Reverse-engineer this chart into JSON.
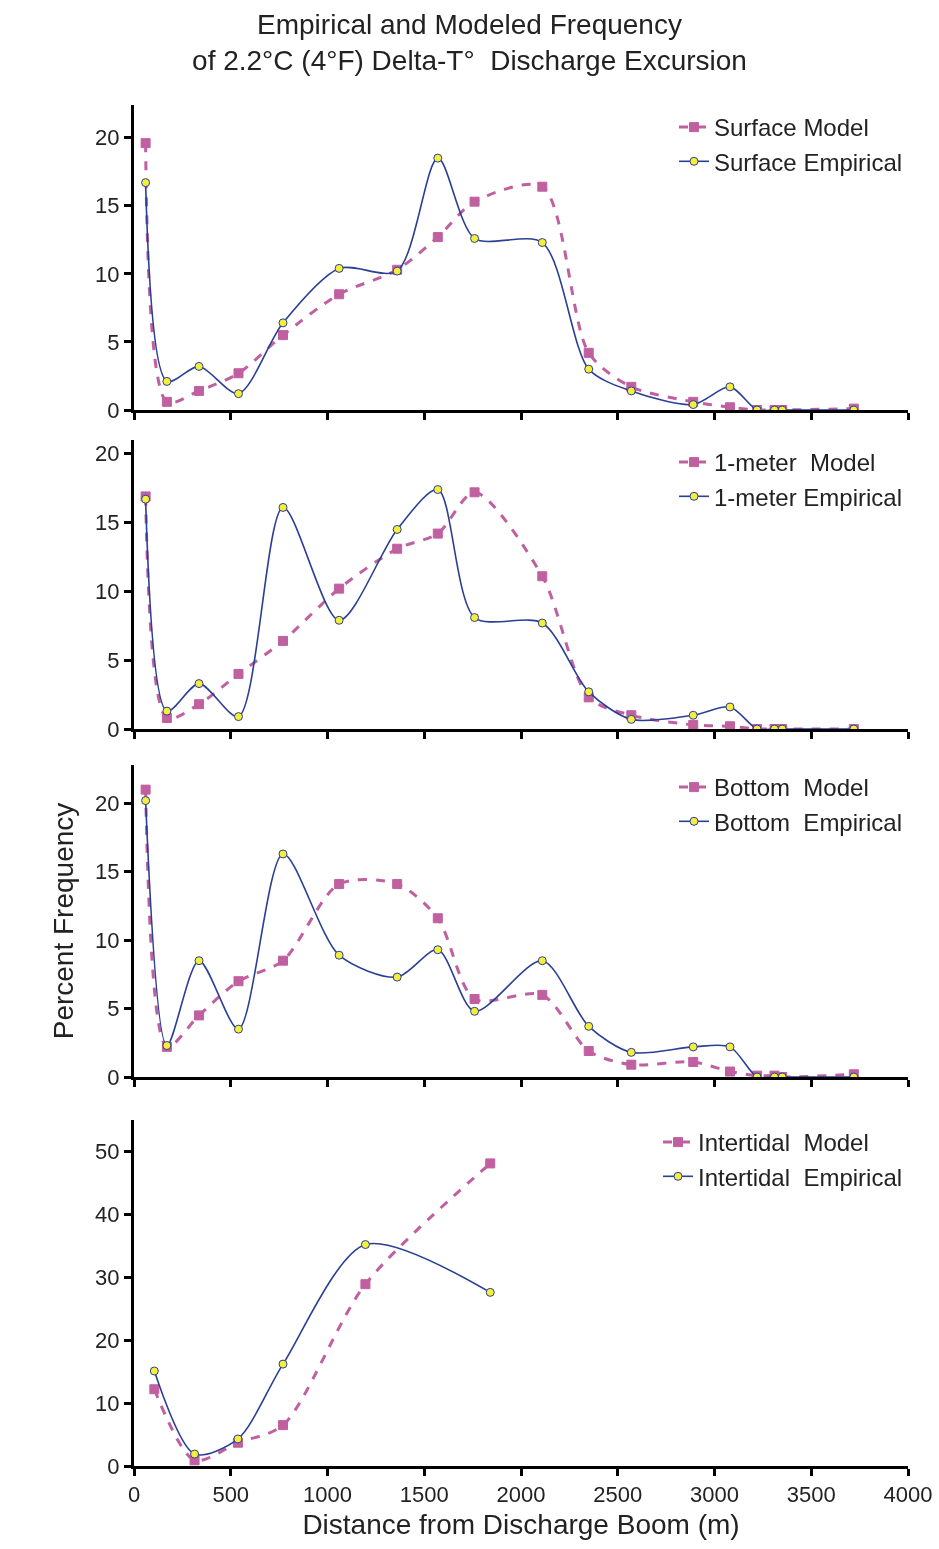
{
  "chart_data": [
    {
      "type": "line",
      "title": "Empirical and Modeled Frequency\nof 2.2°C (4°F) Delta-T°  Discharge Excursion",
      "xlim": [
        0,
        4000
      ],
      "xticks": [
        0,
        500,
        1000,
        1500,
        2000,
        2500,
        3000,
        3500,
        4000
      ],
      "ylim": [
        0,
        22.4
      ],
      "yticks": [
        0,
        5,
        10,
        15,
        20
      ],
      "tick_labels": "y",
      "grid": false,
      "legend": "top right",
      "series": [
        {
          "name": "Surface Model",
          "color": "#c060a0",
          "marker": "square",
          "line_style": "dashed",
          "x": [
            60,
            170,
            336,
            540,
            770,
            1060,
            1360,
            1570,
            1760,
            2110,
            2350,
            2570,
            2890,
            3080,
            3220,
            3310,
            3350,
            3720
          ],
          "values": [
            19.6,
            0.6,
            1.4,
            2.7,
            5.5,
            8.5,
            10.3,
            12.7,
            15.3,
            16.4,
            4.2,
            1.7,
            0.6,
            0.2,
            0,
            0,
            0,
            0.1
          ]
        },
        {
          "name": "Surface Empirical",
          "color": "#2b3f95",
          "marker": "circle",
          "line_style": "solid",
          "x": [
            60,
            170,
            336,
            540,
            770,
            1060,
            1360,
            1570,
            1760,
            2110,
            2350,
            2570,
            2890,
            3080,
            3220,
            3310,
            3350,
            3720
          ],
          "values": [
            16.7,
            2.1,
            3.2,
            1.2,
            6.4,
            10.4,
            10.2,
            18.5,
            12.6,
            12.3,
            3.0,
            1.4,
            0.4,
            1.7,
            0,
            0,
            0,
            0
          ]
        }
      ]
    },
    {
      "type": "line",
      "xlim": [
        0,
        4000
      ],
      "xticks": [
        0,
        500,
        1000,
        1500,
        2000,
        2500,
        3000,
        3500,
        4000
      ],
      "ylim": [
        0,
        21
      ],
      "yticks": [
        0,
        5,
        10,
        15,
        20
      ],
      "tick_labels": "y",
      "grid": false,
      "legend": "top right",
      "series": [
        {
          "name": "1-meter  Model",
          "color": "#c060a0",
          "marker": "square",
          "line_style": "dashed",
          "x": [
            60,
            170,
            336,
            540,
            770,
            1060,
            1360,
            1570,
            1760,
            2110,
            2350,
            2570,
            2890,
            3080,
            3220,
            3310,
            3350,
            3720
          ],
          "values": [
            16.9,
            0.8,
            1.8,
            4.0,
            6.4,
            10.2,
            13.1,
            14.2,
            17.2,
            11.1,
            2.3,
            1.0,
            0.3,
            0.2,
            0,
            0,
            0,
            0
          ]
        },
        {
          "name": "1-meter Empirical",
          "color": "#2b3f95",
          "marker": "circle",
          "line_style": "solid",
          "x": [
            60,
            170,
            336,
            540,
            770,
            1060,
            1360,
            1570,
            1760,
            2110,
            2350,
            2570,
            2890,
            3080,
            3220,
            3310,
            3350,
            3720
          ],
          "values": [
            16.7,
            1.3,
            3.3,
            0.9,
            16.1,
            7.9,
            14.5,
            17.4,
            8.1,
            7.7,
            2.7,
            0.7,
            1.0,
            1.6,
            0,
            0,
            0,
            0
          ]
        }
      ]
    },
    {
      "type": "line",
      "ylabel": "Percent Frequency",
      "xlim": [
        0,
        4000
      ],
      "xticks": [
        0,
        500,
        1000,
        1500,
        2000,
        2500,
        3000,
        3500,
        4000
      ],
      "ylim": [
        0,
        22.8
      ],
      "yticks": [
        0,
        5,
        10,
        15,
        20
      ],
      "tick_labels": "y",
      "grid": false,
      "legend": "top right",
      "series": [
        {
          "name": "Bottom  Model",
          "color": "#c060a0",
          "marker": "square",
          "line_style": "dashed",
          "x": [
            60,
            170,
            336,
            540,
            770,
            1060,
            1360,
            1570,
            1760,
            2110,
            2350,
            2570,
            2890,
            3080,
            3220,
            3310,
            3350,
            3720
          ],
          "values": [
            21.0,
            2.2,
            4.5,
            7.0,
            8.5,
            14.1,
            14.1,
            11.6,
            5.7,
            6.0,
            1.9,
            0.9,
            1.1,
            0.4,
            0.1,
            0.1,
            0,
            0.2
          ]
        },
        {
          "name": "Bottom  Empirical",
          "color": "#2b3f95",
          "marker": "circle",
          "line_style": "solid",
          "x": [
            60,
            170,
            336,
            540,
            770,
            1060,
            1360,
            1570,
            1760,
            2110,
            2350,
            2570,
            2890,
            3080,
            3220,
            3310,
            3350,
            3720
          ],
          "values": [
            20.2,
            2.3,
            8.5,
            3.5,
            16.3,
            8.9,
            7.3,
            9.3,
            4.8,
            8.5,
            3.7,
            1.8,
            2.2,
            2.2,
            0,
            0,
            0,
            0
          ]
        }
      ]
    },
    {
      "type": "line",
      "xlabel": "Distance from Discharge Boom (m)",
      "xlim": [
        0,
        4000
      ],
      "xticks": [
        0,
        500,
        1000,
        1500,
        2000,
        2500,
        3000,
        3500,
        4000
      ],
      "ylim": [
        0,
        55
      ],
      "yticks": [
        0,
        10,
        20,
        30,
        40,
        50
      ],
      "grid": false,
      "legend": "top right",
      "series": [
        {
          "name": "Intertidal  Model",
          "color": "#c060a0",
          "marker": "square",
          "line_style": "dashed",
          "x": [
            105,
            313,
            537,
            770,
            1196,
            1841
          ],
          "values": [
            12.2,
            0.9,
            3.7,
            6.5,
            28.9,
            48.1
          ]
        },
        {
          "name": "Intertidal  Empirical",
          "color": "#2b3f95",
          "marker": "circle",
          "line_style": "solid",
          "x": [
            105,
            313,
            537,
            770,
            1196,
            1841
          ],
          "values": [
            15.1,
            1.9,
            4.3,
            16.2,
            35.2,
            27.6
          ]
        }
      ]
    }
  ]
}
